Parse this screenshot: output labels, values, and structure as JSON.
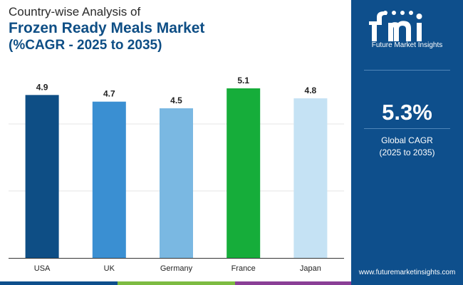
{
  "header": {
    "line1": "Country-wise Analysis of",
    "line2": "Frozen Ready Meals Market",
    "line3": "(%CAGR - 2025 to 2035)"
  },
  "sidebar": {
    "logo_text": "Future Market Insights",
    "cagr_value": "5.3%",
    "cagr_label_1": "Global CAGR",
    "cagr_label_2": "(2025 to 2035)",
    "url": "www.futuremarketinsights.com"
  },
  "chart_data": {
    "type": "bar",
    "categories": [
      "USA",
      "UK",
      "Germany",
      "France",
      "Japan"
    ],
    "values": [
      4.9,
      4.7,
      4.5,
      5.1,
      4.8
    ],
    "value_labels": [
      "4.9",
      "4.7",
      "4.5",
      "5.1",
      "4.8"
    ],
    "colors": [
      "#0e4e85",
      "#3a8fd2",
      "#7ab8e2",
      "#16ad3a",
      "#c5e2f4"
    ],
    "title": "",
    "xlabel": "",
    "ylabel": "",
    "ylim": [
      0,
      5.1
    ],
    "grid": true,
    "legend": "none"
  },
  "colors": {
    "brand": "#0e4f8c",
    "footer": [
      "#0e4f8c",
      "#7dbb42",
      "#e89a2c",
      "#8a3f96"
    ]
  }
}
